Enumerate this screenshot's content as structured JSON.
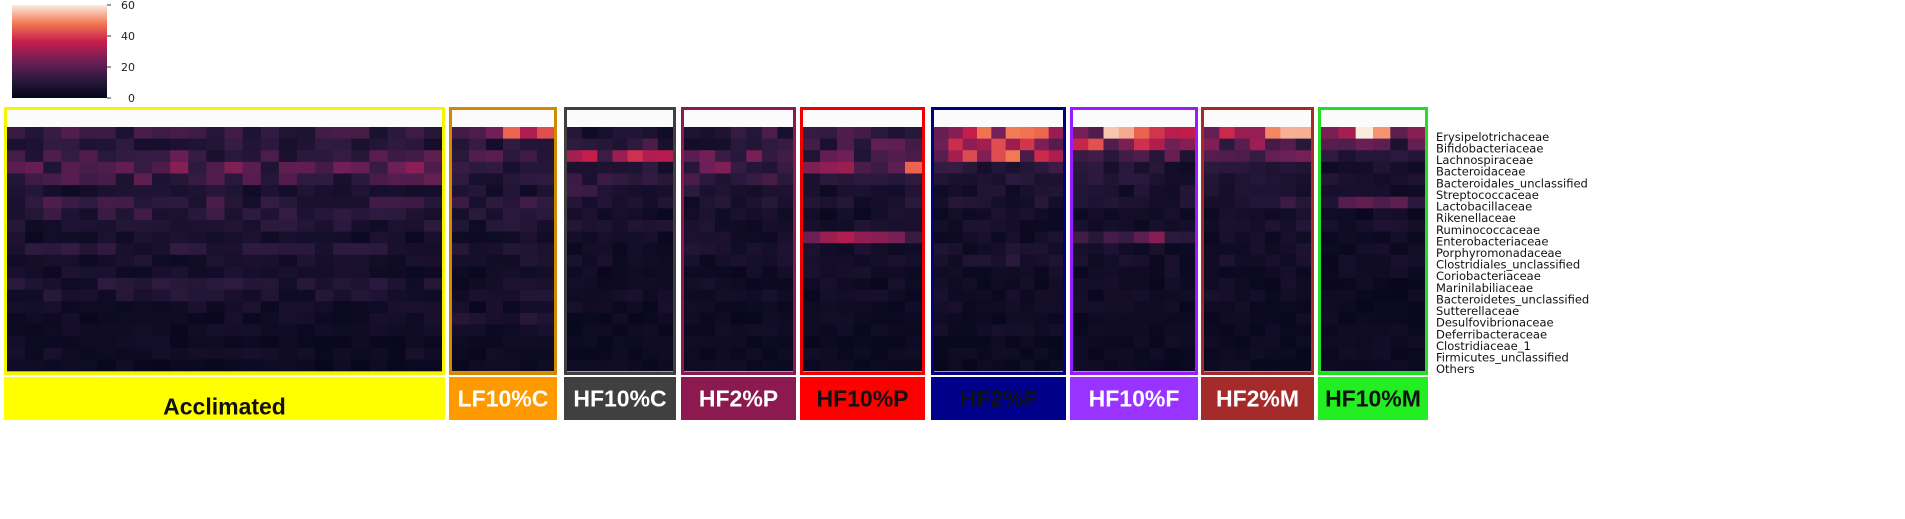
{
  "chart_data": {
    "type": "heatmap",
    "colorbar": {
      "min": 0,
      "max": 60,
      "ticks": [
        "0",
        "20",
        "40",
        "60"
      ],
      "colormap": "rocket"
    },
    "rows": [
      "Erysipelotrichaceae",
      "Bifidobacteriaceae",
      "Lachnospiraceae",
      "Bacteroidaceae",
      "Bacteroidales_unclassified",
      "Streptococcaceae",
      "Lactobacillaceae",
      "Rikenellaceae",
      "Ruminococcaceae",
      "Enterobacteriaceae",
      "Porphyromonadaceae",
      "Clostridiales_unclassified",
      "Coriobacteriaceae",
      "Marinilabiliaceae",
      "Bacteroidetes_unclassified",
      "Sutterellaceae",
      "Desulfovibrionaceae",
      "Deferribacteraceae",
      "Clostridiaceae_1",
      "Firmicutes_unclassified",
      "Others"
    ],
    "groups": [
      {
        "label": "Acclimated",
        "samples": 24,
        "frame_color": "#f5f500",
        "fill_color": "#ffff00",
        "text_color": "#111111",
        "row_means": [
          12,
          9,
          15,
          18,
          14,
          7,
          12,
          10,
          8,
          5,
          9,
          6,
          5,
          8,
          7,
          5,
          4,
          4,
          3,
          4,
          3
        ]
      },
      {
        "label": "LF10%C",
        "samples": 6,
        "frame_color": "#d08a00",
        "fill_color": "#ff9900",
        "text_color": "#ffffff",
        "row_means": [
          30,
          10,
          14,
          12,
          9,
          7,
          11,
          8,
          7,
          5,
          8,
          6,
          4,
          5,
          6,
          4,
          7,
          4,
          3,
          3,
          3
        ]
      },
      {
        "label": "HF10%C",
        "samples": 7,
        "frame_color": "#404040",
        "fill_color": "#404040",
        "text_color": "#ffffff",
        "row_means": [
          8,
          12,
          26,
          9,
          10,
          10,
          7,
          5,
          6,
          4,
          5,
          5,
          4,
          4,
          5,
          4,
          3,
          3,
          3,
          3,
          3
        ]
      },
      {
        "label": "HF2%P",
        "samples": 7,
        "frame_color": "#8c1a50",
        "fill_color": "#8c1a50",
        "text_color": "#ffffff",
        "row_means": [
          14,
          10,
          20,
          18,
          12,
          8,
          7,
          6,
          6,
          5,
          6,
          5,
          4,
          4,
          5,
          4,
          3,
          3,
          3,
          3,
          3
        ]
      },
      {
        "label": "HF10%P",
        "samples": 7,
        "frame_color": "#ee0000",
        "fill_color": "#ff0000",
        "text_color": "#111111",
        "row_means": [
          12,
          14,
          16,
          30,
          10,
          6,
          8,
          5,
          6,
          26,
          5,
          5,
          5,
          4,
          4,
          3,
          4,
          3,
          3,
          3,
          3
        ]
      },
      {
        "label": "HF2%F",
        "samples": 9,
        "frame_color": "#000080",
        "fill_color": "#00008b",
        "text_color": "#111111",
        "row_means": [
          32,
          30,
          34,
          10,
          8,
          6,
          7,
          5,
          5,
          5,
          6,
          8,
          4,
          4,
          4,
          4,
          3,
          4,
          3,
          3,
          3
        ]
      },
      {
        "label": "HF10%F",
        "samples": 8,
        "frame_color": "#9a1bff",
        "fill_color": "#9933ff",
        "text_color": "#ffffff",
        "row_means": [
          38,
          40,
          16,
          8,
          8,
          6,
          6,
          5,
          5,
          18,
          5,
          5,
          4,
          4,
          4,
          4,
          3,
          3,
          3,
          3,
          3
        ]
      },
      {
        "label": "HF2%M",
        "samples": 7,
        "frame_color": "#a52a2a",
        "fill_color": "#a52a2a",
        "text_color": "#ffffff",
        "row_means": [
          40,
          20,
          16,
          9,
          8,
          6,
          12,
          5,
          6,
          5,
          5,
          5,
          4,
          4,
          4,
          4,
          3,
          3,
          3,
          3,
          3
        ]
      },
      {
        "label": "HF10%M",
        "samples": 6,
        "frame_color": "#22dd22",
        "fill_color": "#22ee22",
        "text_color": "#111111",
        "row_means": [
          42,
          16,
          8,
          6,
          6,
          5,
          14,
          4,
          5,
          4,
          4,
          4,
          4,
          3,
          3,
          3,
          3,
          3,
          3,
          3,
          3
        ]
      }
    ]
  }
}
